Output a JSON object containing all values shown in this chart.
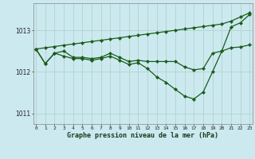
{
  "xlabel": "Graphe pression niveau de la mer (hPa)",
  "background_color": "#cce9f0",
  "grid_color": "#b0d4cc",
  "line_color": "#1a5c1a",
  "line_upper": [
    1012.55,
    1012.58,
    1012.61,
    1012.64,
    1012.67,
    1012.7,
    1012.73,
    1012.76,
    1012.79,
    1012.82,
    1012.85,
    1012.88,
    1012.91,
    1012.94,
    1012.97,
    1013.0,
    1013.03,
    1013.06,
    1013.09,
    1013.12,
    1013.15,
    1013.22,
    1013.32,
    1013.42
  ],
  "line_lower": [
    1012.55,
    1012.2,
    1012.45,
    1012.38,
    1012.32,
    1012.32,
    1012.28,
    1012.32,
    1012.38,
    1012.28,
    1012.18,
    1012.22,
    1012.08,
    1011.88,
    1011.75,
    1011.58,
    1011.42,
    1011.35,
    1011.52,
    1012.0,
    1012.5,
    1013.08,
    1013.18,
    1013.38
  ],
  "line_mid": [
    1012.55,
    1012.2,
    1012.45,
    1012.5,
    1012.35,
    1012.35,
    1012.32,
    1012.35,
    1012.45,
    1012.35,
    1012.25,
    1012.28,
    1012.25,
    1012.25,
    1012.25,
    1012.25,
    1012.12,
    1012.05,
    1012.08,
    1012.45,
    1012.5,
    1012.58,
    1012.6,
    1012.65
  ],
  "ylim": [
    1010.75,
    1013.65
  ],
  "yticks": [
    1011,
    1012,
    1013
  ],
  "xticks": [
    0,
    1,
    2,
    3,
    4,
    5,
    6,
    7,
    8,
    9,
    10,
    11,
    12,
    13,
    14,
    15,
    16,
    17,
    18,
    19,
    20,
    21,
    22,
    23
  ]
}
